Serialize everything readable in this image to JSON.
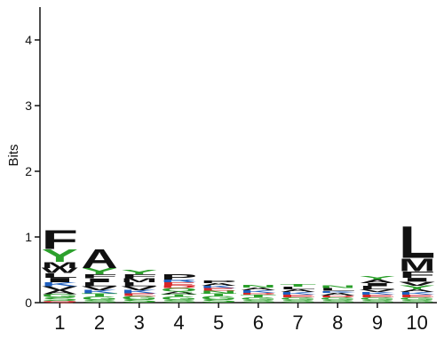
{
  "chart_data": {
    "type": "sequence-logo",
    "title": "",
    "xlabel": "",
    "ylabel": "Bits",
    "ylim": [
      0,
      4.5
    ],
    "yticks": [
      0,
      1,
      2,
      3,
      4
    ],
    "positions": [
      {
        "label": "1",
        "letters": [
          {
            "char": "Q",
            "bits": 0.03,
            "color": "#d62728"
          },
          {
            "char": "S",
            "bits": 0.05,
            "color": "#2ca02c"
          },
          {
            "char": "G",
            "bits": 0.05,
            "color": "#2ca02c"
          },
          {
            "char": "A",
            "bits": 0.06,
            "color": "#111111"
          },
          {
            "char": "V",
            "bits": 0.06,
            "color": "#111111"
          },
          {
            "char": "K",
            "bits": 0.06,
            "color": "#1f5fbf"
          },
          {
            "char": "I",
            "bits": 0.07,
            "color": "#111111"
          },
          {
            "char": "L",
            "bits": 0.07,
            "color": "#111111"
          },
          {
            "char": "W",
            "bits": 0.08,
            "color": "#111111"
          },
          {
            "char": "M",
            "bits": 0.09,
            "color": "#111111"
          },
          {
            "char": "Y",
            "bits": 0.2,
            "color": "#2ca02c"
          },
          {
            "char": "F",
            "bits": 0.3,
            "color": "#111111"
          }
        ]
      },
      {
        "label": "2",
        "letters": [
          {
            "char": "S",
            "bits": 0.04,
            "color": "#2ca02c"
          },
          {
            "char": "G",
            "bits": 0.05,
            "color": "#2ca02c"
          },
          {
            "char": "T",
            "bits": 0.05,
            "color": "#2ca02c"
          },
          {
            "char": "K",
            "bits": 0.05,
            "color": "#1f5fbf"
          },
          {
            "char": "V",
            "bits": 0.06,
            "color": "#111111"
          },
          {
            "char": "L",
            "bits": 0.06,
            "color": "#111111"
          },
          {
            "char": "I",
            "bits": 0.06,
            "color": "#111111"
          },
          {
            "char": "F",
            "bits": 0.06,
            "color": "#111111"
          },
          {
            "char": "Y",
            "bits": 0.1,
            "color": "#2ca02c"
          },
          {
            "char": "A",
            "bits": 0.3,
            "color": "#111111"
          }
        ]
      },
      {
        "label": "3",
        "letters": [
          {
            "char": "S",
            "bits": 0.05,
            "color": "#2ca02c"
          },
          {
            "char": "G",
            "bits": 0.05,
            "color": "#2ca02c"
          },
          {
            "char": "E",
            "bits": 0.04,
            "color": "#d62728"
          },
          {
            "char": "K",
            "bits": 0.05,
            "color": "#1f5fbf"
          },
          {
            "char": "V",
            "bits": 0.06,
            "color": "#111111"
          },
          {
            "char": "L",
            "bits": 0.06,
            "color": "#111111"
          },
          {
            "char": "M",
            "bits": 0.06,
            "color": "#111111"
          },
          {
            "char": "F",
            "bits": 0.06,
            "color": "#111111"
          },
          {
            "char": "Y",
            "bits": 0.07,
            "color": "#2ca02c"
          }
        ]
      },
      {
        "label": "4",
        "letters": [
          {
            "char": "S",
            "bits": 0.04,
            "color": "#2ca02c"
          },
          {
            "char": "G",
            "bits": 0.05,
            "color": "#2ca02c"
          },
          {
            "char": "T",
            "bits": 0.04,
            "color": "#2ca02c"
          },
          {
            "char": "A",
            "bits": 0.04,
            "color": "#111111"
          },
          {
            "char": "Q",
            "bits": 0.05,
            "color": "#2ca02c"
          },
          {
            "char": "D",
            "bits": 0.04,
            "color": "#d62728"
          },
          {
            "char": "E",
            "bits": 0.05,
            "color": "#d62728"
          },
          {
            "char": "R",
            "bits": 0.04,
            "color": "#1f5fbf"
          },
          {
            "char": "P",
            "bits": 0.08,
            "color": "#111111"
          }
        ]
      },
      {
        "label": "5",
        "letters": [
          {
            "char": "S",
            "bits": 0.05,
            "color": "#2ca02c"
          },
          {
            "char": "G",
            "bits": 0.05,
            "color": "#2ca02c"
          },
          {
            "char": "T",
            "bits": 0.04,
            "color": "#2ca02c"
          },
          {
            "char": "N",
            "bits": 0.04,
            "color": "#2ca02c"
          },
          {
            "char": "E",
            "bits": 0.04,
            "color": "#d62728"
          },
          {
            "char": "K",
            "bits": 0.04,
            "color": "#1f5fbf"
          },
          {
            "char": "A",
            "bits": 0.04,
            "color": "#111111"
          },
          {
            "char": "P",
            "bits": 0.04,
            "color": "#111111"
          }
        ]
      },
      {
        "label": "6",
        "letters": [
          {
            "char": "S",
            "bits": 0.04,
            "color": "#2ca02c"
          },
          {
            "char": "G",
            "bits": 0.04,
            "color": "#2ca02c"
          },
          {
            "char": "T",
            "bits": 0.04,
            "color": "#2ca02c"
          },
          {
            "char": "D",
            "bits": 0.03,
            "color": "#d62728"
          },
          {
            "char": "K",
            "bits": 0.04,
            "color": "#1f5fbf"
          },
          {
            "char": "A",
            "bits": 0.04,
            "color": "#111111"
          },
          {
            "char": "N",
            "bits": 0.04,
            "color": "#2ca02c"
          }
        ]
      },
      {
        "label": "7",
        "letters": [
          {
            "char": "S",
            "bits": 0.04,
            "color": "#2ca02c"
          },
          {
            "char": "G",
            "bits": 0.04,
            "color": "#2ca02c"
          },
          {
            "char": "E",
            "bits": 0.04,
            "color": "#d62728"
          },
          {
            "char": "K",
            "bits": 0.04,
            "color": "#1f5fbf"
          },
          {
            "char": "A",
            "bits": 0.04,
            "color": "#111111"
          },
          {
            "char": "L",
            "bits": 0.04,
            "color": "#111111"
          },
          {
            "char": "T",
            "bits": 0.04,
            "color": "#2ca02c"
          }
        ]
      },
      {
        "label": "8",
        "letters": [
          {
            "char": "S",
            "bits": 0.04,
            "color": "#2ca02c"
          },
          {
            "char": "G",
            "bits": 0.04,
            "color": "#2ca02c"
          },
          {
            "char": "D",
            "bits": 0.03,
            "color": "#d62728"
          },
          {
            "char": "A",
            "bits": 0.04,
            "color": "#111111"
          },
          {
            "char": "K",
            "bits": 0.03,
            "color": "#1f5fbf"
          },
          {
            "char": "L",
            "bits": 0.04,
            "color": "#111111"
          },
          {
            "char": "N",
            "bits": 0.04,
            "color": "#2ca02c"
          }
        ]
      },
      {
        "label": "9",
        "letters": [
          {
            "char": "S",
            "bits": 0.04,
            "color": "#2ca02c"
          },
          {
            "char": "G",
            "bits": 0.04,
            "color": "#2ca02c"
          },
          {
            "char": "E",
            "bits": 0.04,
            "color": "#d62728"
          },
          {
            "char": "K",
            "bits": 0.04,
            "color": "#1f5fbf"
          },
          {
            "char": "V",
            "bits": 0.04,
            "color": "#111111"
          },
          {
            "char": "L",
            "bits": 0.05,
            "color": "#111111"
          },
          {
            "char": "I",
            "bits": 0.05,
            "color": "#111111"
          },
          {
            "char": "A",
            "bits": 0.05,
            "color": "#111111"
          },
          {
            "char": "Y",
            "bits": 0.05,
            "color": "#2ca02c"
          }
        ]
      },
      {
        "label": "10",
        "letters": [
          {
            "char": "S",
            "bits": 0.04,
            "color": "#2ca02c"
          },
          {
            "char": "G",
            "bits": 0.04,
            "color": "#2ca02c"
          },
          {
            "char": "E",
            "bits": 0.04,
            "color": "#d62728"
          },
          {
            "char": "K",
            "bits": 0.04,
            "color": "#1f5fbf"
          },
          {
            "char": "A",
            "bits": 0.04,
            "color": "#111111"
          },
          {
            "char": "Y",
            "bits": 0.06,
            "color": "#2ca02c"
          },
          {
            "char": "V",
            "bits": 0.06,
            "color": "#111111"
          },
          {
            "char": "I",
            "bits": 0.06,
            "color": "#111111"
          },
          {
            "char": "F",
            "bits": 0.1,
            "color": "#111111"
          },
          {
            "char": "M",
            "bits": 0.2,
            "color": "#111111"
          },
          {
            "char": "L",
            "bits": 0.5,
            "color": "#111111"
          }
        ]
      }
    ]
  }
}
